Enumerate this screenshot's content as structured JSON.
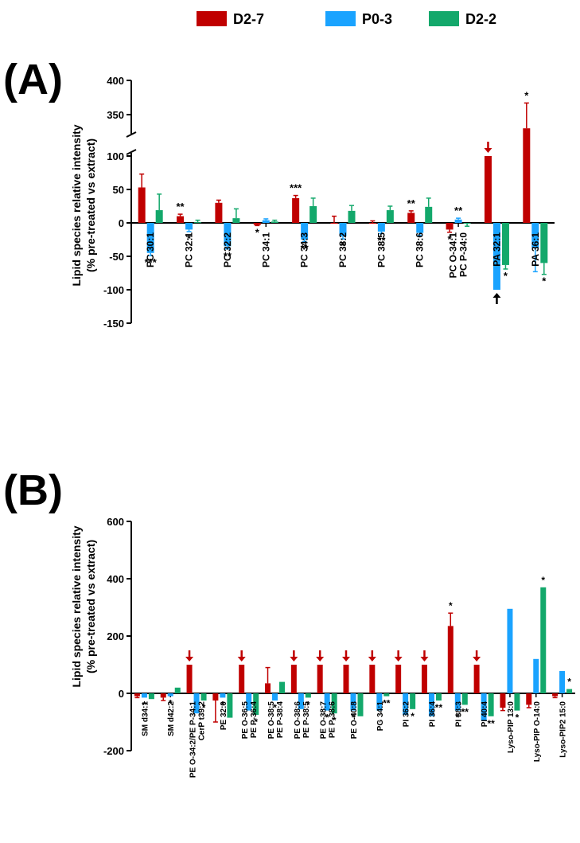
{
  "colors": {
    "D2-7": "#c00000",
    "P0-3": "#1aa3ff",
    "D2-2": "#13a86b",
    "axis": "#000000"
  },
  "legend": [
    {
      "name": "D2-7",
      "color": "#c00000"
    },
    {
      "name": "P0-3",
      "color": "#1aa3ff"
    },
    {
      "name": "D2-2",
      "color": "#13a86b"
    }
  ],
  "chart_data": [
    {
      "panel": "(A)",
      "type": "bar",
      "ylabel_line1": "Lipid species relative intensity",
      "ylabel_line2": "(% pre-treated vs extract)",
      "ylim": [
        -150,
        400
      ],
      "axis_break": [
        100,
        300
      ],
      "yticks": [
        "-150",
        "-100",
        "-50",
        "0",
        "50",
        "100",
        "350",
        "400"
      ],
      "categories": [
        "PC 30:1",
        "PC 32:1",
        "PC 32:2",
        "PC 34:1",
        "PC 34:3",
        "PC 38:2",
        "PC 38:5",
        "PC 38:6",
        "PC O-34:1\nPC P-34:0",
        "PA 32:1",
        "PA 36:1"
      ],
      "series": [
        {
          "name": "D2-7",
          "values": [
            53,
            10,
            30,
            -3,
            37,
            0,
            0,
            15,
            -10,
            100,
            330
          ],
          "errors": [
            20,
            3,
            4,
            1,
            4,
            10,
            3,
            3,
            4,
            0,
            37
          ]
        },
        {
          "name": "P0-3",
          "values": [
            -45,
            -10,
            -35,
            4,
            -25,
            -20,
            -13,
            -15,
            5,
            -100,
            -38
          ],
          "errors": [
            4,
            3,
            4,
            2,
            3,
            4,
            3,
            4,
            2,
            0,
            35
          ]
        },
        {
          "name": "D2-2",
          "values": [
            19,
            1,
            7,
            2,
            25,
            18,
            19,
            24,
            -1,
            -63,
            -60
          ],
          "errors": [
            24,
            3,
            14,
            2,
            12,
            8,
            6,
            13,
            4,
            6,
            17
          ]
        }
      ],
      "annotations": [
        {
          "text": "***",
          "cat": 0,
          "series": 1
        },
        {
          "text": "**",
          "cat": 1,
          "series": 0
        },
        {
          "text": "*",
          "cat": 1,
          "series": 1
        },
        {
          "text": "**",
          "cat": 2,
          "series": 1
        },
        {
          "text": "*",
          "cat": 3,
          "series": 0
        },
        {
          "text": "***",
          "cat": 4,
          "series": 0
        },
        {
          "text": "**",
          "cat": 4,
          "series": 1
        },
        {
          "text": "*",
          "cat": 5,
          "series": 1
        },
        {
          "text": "**",
          "cat": 6,
          "series": 1
        },
        {
          "text": "**",
          "cat": 7,
          "series": 0
        },
        {
          "text": "*",
          "cat": 8,
          "series": 0
        },
        {
          "text": "**",
          "cat": 8,
          "series": 1
        },
        {
          "text": "*",
          "cat": 9,
          "series": 2
        },
        {
          "text": "*",
          "cat": 10,
          "series": 0
        },
        {
          "text": "*",
          "cat": 10,
          "series": 2
        }
      ],
      "arrows": [
        {
          "cat": 9,
          "series": 0,
          "dir": "down",
          "color": "#c00000"
        },
        {
          "cat": 9,
          "series": 1,
          "dir": "up",
          "color": "#000000"
        }
      ]
    },
    {
      "panel": "(B)",
      "type": "bar",
      "ylabel_line1": "Lipid species relative intensity",
      "ylabel_line2": "(% pre-treated vs extract)",
      "ylim": [
        -200,
        600
      ],
      "yticks": [
        "-200",
        "0",
        "200",
        "400",
        "600"
      ],
      "categories": [
        "SM d34:1",
        "SM d42:2",
        "PE O-34:2/PE P-34:1\nCerP t39:2",
        "PE 32:0",
        "PE O-36:5\nPE P-36:4",
        "PE O-38:5\nPE P-38:4",
        "PE O-38:6\nPE P-38:5",
        "PE O-38:7\nPE P-38:6",
        "PE O-40:8",
        "PG 34:1",
        "PI 36:2",
        "PI 36:4",
        "PI 38:3",
        "PI 40:4",
        "Lyso-PIP 13:0",
        "Lyso-PIP O-14:0",
        "Lyso-PIP2 15:0"
      ],
      "series": [
        {
          "name": "D2-7",
          "values": [
            -10,
            -15,
            100,
            -25,
            100,
            35,
            100,
            100,
            100,
            100,
            100,
            100,
            235,
            100,
            -50,
            -40,
            -10
          ],
          "errors": [
            5,
            10,
            0,
            75,
            0,
            55,
            0,
            0,
            0,
            0,
            0,
            0,
            45,
            0,
            10,
            10,
            5
          ]
        },
        {
          "name": "P0-3",
          "values": [
            -15,
            -10,
            -70,
            -15,
            -60,
            -25,
            -55,
            -60,
            -60,
            -60,
            -75,
            -80,
            -60,
            -95,
            295,
            120,
            78
          ]
        },
        {
          "name": "D2-2",
          "values": [
            -20,
            20,
            -25,
            -85,
            -75,
            40,
            -15,
            -70,
            -80,
            -10,
            -55,
            -25,
            -40,
            -80,
            -60,
            370,
            15
          ]
        }
      ],
      "annotations": [
        {
          "text": "*",
          "cat": 0,
          "series": 1
        },
        {
          "text": "*",
          "cat": 1,
          "series": 1
        },
        {
          "text": "*",
          "cat": 2,
          "series": 2
        },
        {
          "text": "*",
          "cat": 3,
          "series": 1
        },
        {
          "text": "*",
          "cat": 4,
          "series": 2
        },
        {
          "text": "*",
          "cat": 5,
          "series": 1
        },
        {
          "text": "*",
          "cat": 6,
          "series": 2
        },
        {
          "text": "*",
          "cat": 7,
          "series": 1
        },
        {
          "text": "*",
          "cat": 7,
          "series": 2
        },
        {
          "text": "*",
          "cat": 8,
          "series": 1
        },
        {
          "text": "**",
          "cat": 9,
          "series": 2
        },
        {
          "text": "*",
          "cat": 10,
          "series": 2
        },
        {
          "text": "**",
          "cat": 11,
          "series": 2
        },
        {
          "text": "*",
          "cat": 12,
          "series": 0
        },
        {
          "text": "*",
          "cat": 12,
          "series": 1
        },
        {
          "text": "**",
          "cat": 12,
          "series": 2
        },
        {
          "text": "**",
          "cat": 13,
          "series": 2
        },
        {
          "text": "*",
          "cat": 14,
          "series": 2
        },
        {
          "text": "*",
          "cat": 15,
          "series": 2
        },
        {
          "text": "*",
          "cat": 16,
          "series": 2
        }
      ],
      "arrows": [
        {
          "cat": 2,
          "series": 0,
          "dir": "down",
          "color": "#c00000"
        },
        {
          "cat": 4,
          "series": 0,
          "dir": "down",
          "color": "#c00000"
        },
        {
          "cat": 6,
          "series": 0,
          "dir": "down",
          "color": "#c00000"
        },
        {
          "cat": 7,
          "series": 0,
          "dir": "down",
          "color": "#c00000"
        },
        {
          "cat": 8,
          "series": 0,
          "dir": "down",
          "color": "#c00000"
        },
        {
          "cat": 9,
          "series": 0,
          "dir": "down",
          "color": "#c00000"
        },
        {
          "cat": 10,
          "series": 0,
          "dir": "down",
          "color": "#c00000"
        },
        {
          "cat": 11,
          "series": 0,
          "dir": "down",
          "color": "#c00000"
        },
        {
          "cat": 13,
          "series": 0,
          "dir": "down",
          "color": "#c00000"
        }
      ]
    }
  ]
}
